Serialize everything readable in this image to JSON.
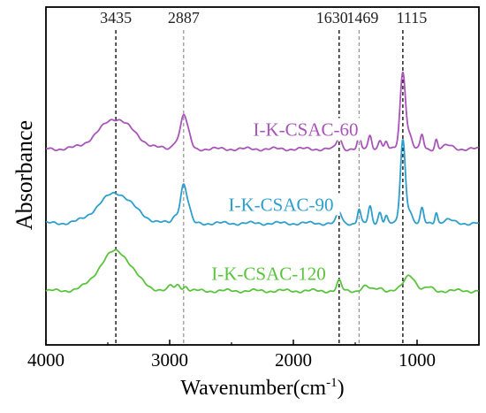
{
  "chart_data": {
    "type": "line",
    "xlabel": "Wavenumber(cm",
    "xlabel_sup": "-1",
    "xlabel_close": ")",
    "ylabel": "Absorbance",
    "xlim": [
      4000,
      500
    ],
    "x_reversed": true,
    "grid": false,
    "x_ticks": [
      4000,
      3000,
      2000,
      1000
    ],
    "x_tick_labels": [
      "4000",
      "3000",
      "2000",
      "1000"
    ],
    "peak_lines": [
      {
        "x": 3435,
        "label": "3435",
        "color": "#000000"
      },
      {
        "x": 2887,
        "label": "2887",
        "color": "#888888"
      },
      {
        "x": 1630,
        "label": "1630",
        "color": "#000000"
      },
      {
        "x": 1469,
        "label": "1469",
        "color": "#888888"
      },
      {
        "x": 1115,
        "label": "1115",
        "color": "#000000"
      }
    ],
    "series": [
      {
        "name": "I-K-CSAC-60",
        "color": "#a855b8",
        "baseline": 0.58,
        "peaks": [
          {
            "x": 3435,
            "h": 0.47,
            "w": 140
          },
          {
            "x": 2950,
            "h": 0.12,
            "w": 25
          },
          {
            "x": 2887,
            "h": 0.52,
            "w": 25
          },
          {
            "x": 2840,
            "h": 0.15,
            "w": 20
          },
          {
            "x": 1630,
            "h": 0.17,
            "w": 20
          },
          {
            "x": 1469,
            "h": 0.18,
            "w": 13
          },
          {
            "x": 1380,
            "h": 0.22,
            "w": 14
          },
          {
            "x": 1300,
            "h": 0.15,
            "w": 14
          },
          {
            "x": 1250,
            "h": 0.1,
            "w": 12
          },
          {
            "x": 1115,
            "h": 1.2,
            "w": 22
          },
          {
            "x": 1060,
            "h": 0.2,
            "w": 20
          },
          {
            "x": 960,
            "h": 0.22,
            "w": 13
          },
          {
            "x": 845,
            "h": 0.15,
            "w": 11
          },
          {
            "x": 750,
            "h": 0.05,
            "w": 40
          }
        ]
      },
      {
        "name": "I-K-CSAC-90",
        "color": "#2e9fcc",
        "baseline": 0.36,
        "peaks": [
          {
            "x": 3435,
            "h": 0.47,
            "w": 140
          },
          {
            "x": 2950,
            "h": 0.12,
            "w": 25
          },
          {
            "x": 2887,
            "h": 0.6,
            "w": 25
          },
          {
            "x": 2840,
            "h": 0.15,
            "w": 20
          },
          {
            "x": 1630,
            "h": 0.17,
            "w": 20
          },
          {
            "x": 1469,
            "h": 0.22,
            "w": 13
          },
          {
            "x": 1380,
            "h": 0.25,
            "w": 14
          },
          {
            "x": 1300,
            "h": 0.18,
            "w": 14
          },
          {
            "x": 1250,
            "h": 0.12,
            "w": 12
          },
          {
            "x": 1115,
            "h": 1.3,
            "w": 20
          },
          {
            "x": 1060,
            "h": 0.2,
            "w": 20
          },
          {
            "x": 960,
            "h": 0.22,
            "w": 13
          },
          {
            "x": 845,
            "h": 0.18,
            "w": 11
          },
          {
            "x": 750,
            "h": 0.05,
            "w": 40
          }
        ]
      },
      {
        "name": "I-K-CSAC-120",
        "color": "#5ac43c",
        "baseline": 0.16,
        "peaks": [
          {
            "x": 3435,
            "h": 0.62,
            "w": 130
          },
          {
            "x": 2990,
            "h": 0.08,
            "w": 18
          },
          {
            "x": 2930,
            "h": 0.1,
            "w": 20
          },
          {
            "x": 2870,
            "h": 0.07,
            "w": 18
          },
          {
            "x": 1630,
            "h": 0.15,
            "w": 18
          },
          {
            "x": 1420,
            "h": 0.07,
            "w": 30
          },
          {
            "x": 1300,
            "h": 0.05,
            "w": 30
          },
          {
            "x": 1060,
            "h": 0.25,
            "w": 45
          },
          {
            "x": 900,
            "h": 0.05,
            "w": 30
          }
        ]
      }
    ]
  }
}
